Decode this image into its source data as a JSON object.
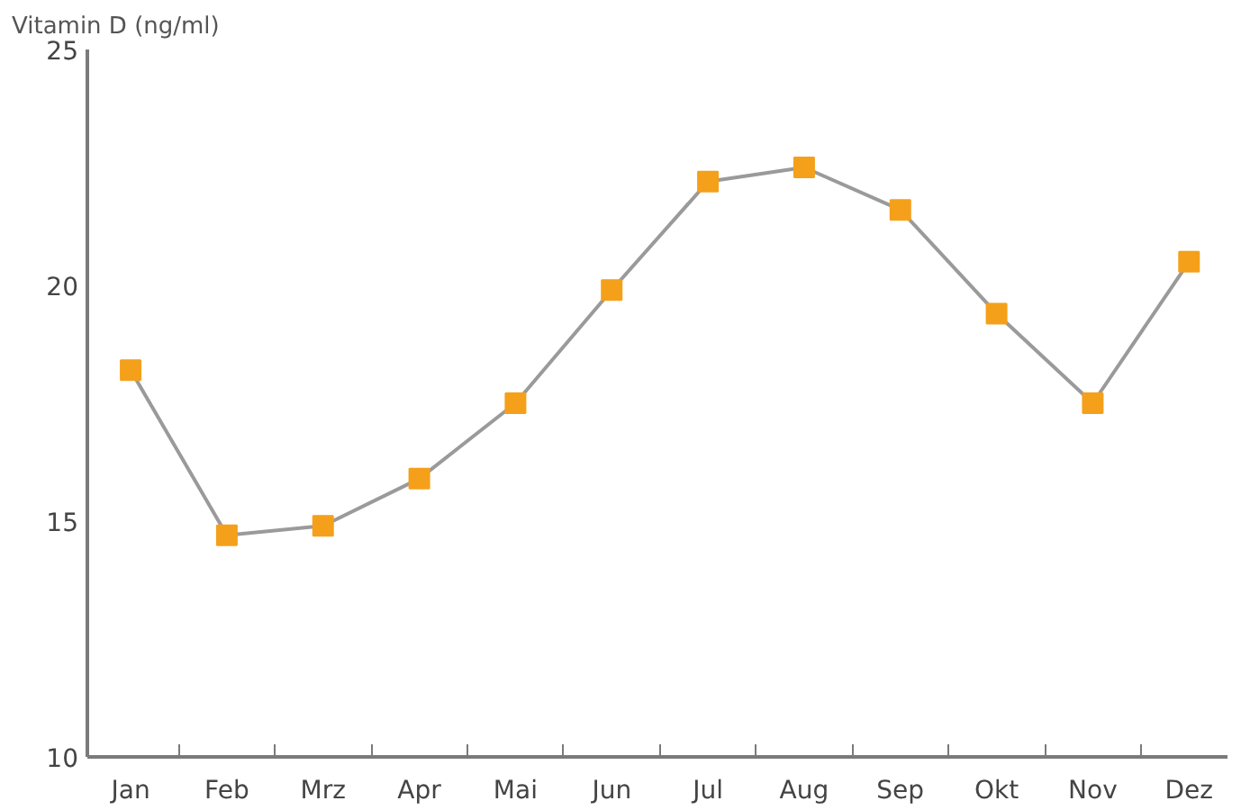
{
  "chart_data": {
    "type": "line",
    "ylabel": "Vitamin D (ng/ml)",
    "categories": [
      "Jan",
      "Feb",
      "Mrz",
      "Apr",
      "Mai",
      "Jun",
      "Jul",
      "Aug",
      "Sep",
      "Okt",
      "Nov",
      "Dez"
    ],
    "series": [
      {
        "color": "#f5a01a",
        "values": [
          18.2,
          14.7,
          14.9,
          15.9,
          17.5,
          19.9,
          22.2,
          22.5,
          21.6,
          19.4,
          17.5,
          20.5
        ]
      }
    ],
    "ylim": [
      10,
      25
    ],
    "yticks": [
      10,
      15,
      20,
      25
    ],
    "marker": "square",
    "line_style": "solid"
  }
}
